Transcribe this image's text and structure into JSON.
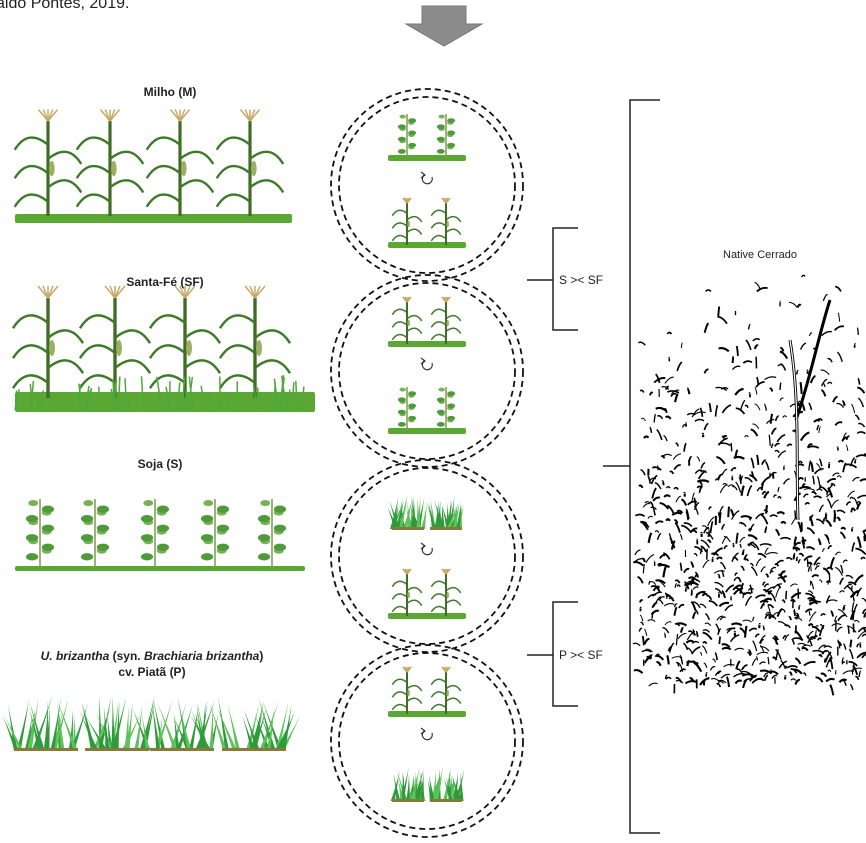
{
  "header": {
    "caption": "aldo Pontes, 2019."
  },
  "systems": [
    {
      "label": "Milho (M)"
    },
    {
      "label": "Santa-Fé (SF)"
    },
    {
      "label": "Soja (S)"
    },
    {
      "label_parts": [
        "U. brizantha",
        " (syn. ",
        "Brachiaria brizantha",
        ")"
      ],
      "label_line2": "cv. Piatã (P)"
    }
  ],
  "comparisons": [
    "S >< SF",
    "P >< SF"
  ],
  "reference": {
    "label": "Native Cerrado"
  }
}
